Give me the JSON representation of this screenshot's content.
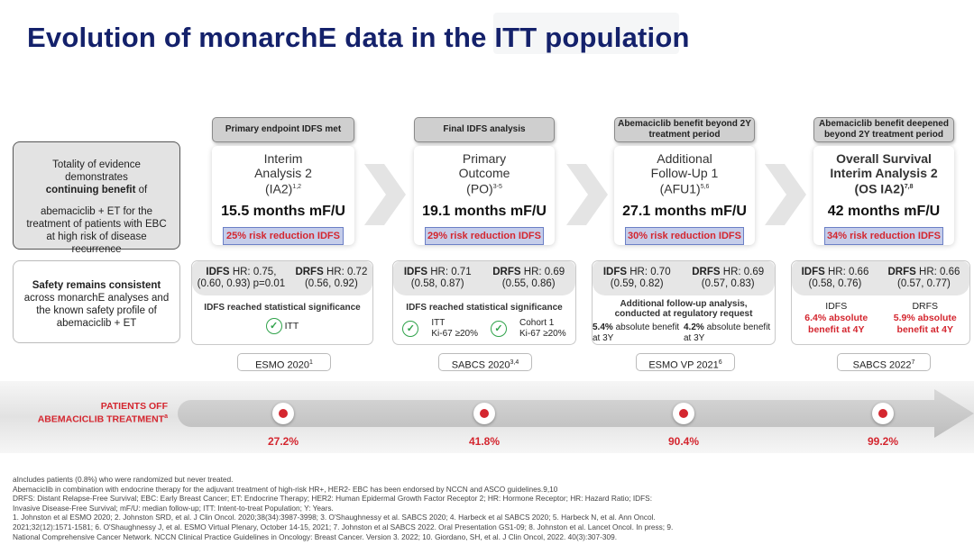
{
  "title": "Evolution of monarchE data in the ITT population",
  "left_panel": {
    "totality_line1": "Totality of evidence demonstrates",
    "totality_bold": "continuing benefit",
    "totality_of": "of",
    "totality_line3": "abemaciclib + ET for the treatment of patients with EBC at high risk of disease recurrence",
    "safety_bold": "Safety remains consistent",
    "safety_rest": "across monarchE analyses and the known safety profile of abemaciclib + ET"
  },
  "columns": [
    {
      "header": "Primary endpoint IDFS met",
      "analysis_lines": [
        "Interim",
        "Analysis 2",
        "(IA2)"
      ],
      "analysis_sup": "1,2",
      "months": "15.5 months mF/U",
      "risk": "25% risk reduction IDFS",
      "idfs_label": "IDFS",
      "idfs_hr": "HR: 0.75,",
      "idfs_ci": "(0.60, 0.93) p=0.01",
      "drfs_label": "DRFS",
      "drfs_hr": "HR: 0.72",
      "drfs_ci": "(0.56, 0.92)",
      "note": "IDFS reached statistical significance",
      "check1": "ITT",
      "conference": "ESMO 2020",
      "conference_sup": "1"
    },
    {
      "header": "Final IDFS analysis",
      "analysis_lines": [
        "Primary",
        "Outcome",
        "(PO)"
      ],
      "analysis_sup": "3-5",
      "months": "19.1 months mF/U",
      "risk": "29% risk reduction IDFS",
      "idfs_label": "IDFS",
      "idfs_hr": "HR: 0.71",
      "idfs_ci": "(0.58, 0.87)",
      "drfs_label": "DRFS",
      "drfs_hr": "HR: 0.69",
      "drfs_ci": "(0.55, 0.86)",
      "note": "IDFS reached statistical significance",
      "check1": "ITT",
      "check1b": "Ki-67 ≥20%",
      "check2": "Cohort 1",
      "check2b": "Ki-67 ≥20%",
      "conference": "SABCS 2020",
      "conference_sup": "3,4"
    },
    {
      "header": "Abemaciclib benefit beyond 2Y treatment period",
      "analysis_lines": [
        "Additional",
        "Follow-Up 1",
        "(AFU1)"
      ],
      "analysis_sup": "5,6",
      "months": "27.1 months mF/U",
      "risk": "30% risk reduction IDFS",
      "idfs_label": "IDFS",
      "idfs_hr": "HR: 0.70",
      "idfs_ci": "(0.59, 0.82)",
      "drfs_label": "DRFS",
      "drfs_hr": "HR: 0.69",
      "drfs_ci": "(0.57, 0.83)",
      "note": "Additional follow-up analysis, conducted at regulatory request",
      "benefit1_bold": "5.4%",
      "benefit1_rest": "absolute benefit at 3Y",
      "benefit2_bold": "4.2%",
      "benefit2_rest": "absolute benefit at 3Y",
      "conference": "ESMO VP 2021",
      "conference_sup": "6"
    },
    {
      "header": "Abemaciclib benefit deepened beyond 2Y treatment period",
      "analysis_lines": [
        "Overall Survival",
        "Interim Analysis 2",
        "(OS IA2)"
      ],
      "analysis_sup": "7,8",
      "months": "42 months mF/U",
      "risk": "34% risk reduction IDFS",
      "idfs_label": "IDFS",
      "idfs_hr": "HR: 0.66",
      "idfs_ci": "(0.58, 0.76)",
      "drfs_label": "DRFS",
      "drfs_hr": "HR: 0.66",
      "drfs_ci": "(0.57, 0.77)",
      "benefit1_label": "IDFS",
      "benefit1_red": "6.4% absolute benefit at 4Y",
      "benefit2_label": "DRFS",
      "benefit2_red": "5.9% absolute benefit at 4Y",
      "conference": "SABCS 2022",
      "conference_sup": "7"
    }
  ],
  "timeline": {
    "label_line1": "PATIENTS OFF",
    "label_line2": "ABEMACICLIB TREATMENT",
    "label_sup": "a",
    "percents": [
      "27.2%",
      "41.8%",
      "90.4%",
      "99.2%"
    ]
  },
  "footnotes": [
    "aIncludes patients (0.8%) who were randomized but never treated.",
    "Abemaciclib in combination with endocrine therapy for the adjuvant treatment of high-risk HR+, HER2- EBC has been endorsed by NCCN and ASCO guidelines.9,10",
    "DRFS: Distant Relapse-Free Survival; EBC: Early Breast Cancer; ET: Endocrine Therapy; HER2: Human Epidermal Growth Factor Receptor 2; HR: Hormone Receptor; HR: Hazard Ratio; IDFS:",
    "Invasive Disease-Free Survival; mF/U: median follow-up; ITT: Intent-to-treat Population; Y: Years.",
    "1. Johnston et al ESMO 2020; 2. Johnston SRD, et al. J Clin Oncol. 2020;38(34):3987-3998; 3. O'Shaughnessy et al. SABCS 2020; 4. Harbeck et al SABCS 2020; 5. Harbeck N, et al. Ann Oncol.",
    "2021;32(12):1571-1581; 6. O'Shaughnessy J, et al. ESMO Virtual Plenary, October 14-15, 2021; 7. Johnston et al SABCS 2022. Oral Presentation GS1-09; 8. Johnston et al. Lancet Oncol. In press; 9.",
    "National Comprehensive Cancer Network. NCCN Clinical Practice Guidelines in Oncology: Breast Cancer. Version 3. 2022; 10. Giordano, SH, et al. J Clin Oncol, 2022. 40(3):307-309."
  ],
  "colors": {
    "title": "#14216b",
    "accent_red": "#d4262f",
    "check_green": "#2fa24a",
    "risk_fill": "#c5cdea"
  }
}
